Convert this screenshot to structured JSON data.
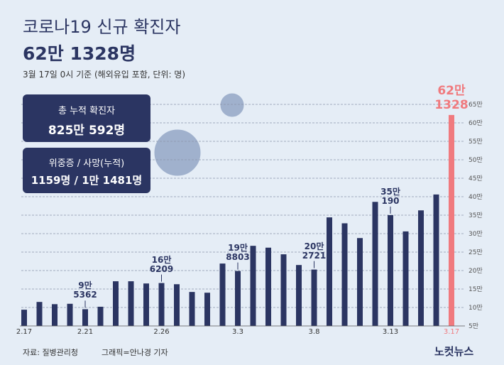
{
  "chart_data": {
    "type": "bar",
    "title": "코로나19 신규 확진자",
    "headline": "62만 1328명",
    "subtitle": "3월 17일 0시 기준 (해외유입 포함, 단위: 명)",
    "boxes": [
      {
        "label": "총 누적 확진자",
        "value": "825만 592명"
      },
      {
        "label": "위중증 / 사망(누적)",
        "value": "1159명 / 1만 1481명"
      }
    ],
    "source": "자료: 질병관리청",
    "credit": "그래픽=안나경 기자",
    "logo": "노컷뉴스",
    "categories": [
      "2.17",
      null,
      null,
      null,
      "2.21",
      null,
      null,
      null,
      null,
      "2.26",
      null,
      null,
      null,
      null,
      "3.3",
      null,
      null,
      null,
      null,
      "3.8",
      null,
      null,
      null,
      null,
      "3.13",
      null,
      null,
      null,
      "3.17"
    ],
    "values": [
      9.4,
      11.5,
      10.9,
      11.0,
      9.5362,
      10.2,
      17.1,
      17.1,
      16.5,
      16.6209,
      16.3,
      14.2,
      14.0,
      21.9,
      19.8803,
      26.7,
      26.2,
      24.4,
      21.5,
      20.2721,
      34.4,
      32.8,
      28.8,
      38.6,
      35.019,
      30.6,
      36.3,
      40.6,
      62.1328
    ],
    "value_labels": [
      null,
      null,
      null,
      null,
      "9만\n5362",
      null,
      null,
      null,
      null,
      "16만\n6209",
      null,
      null,
      null,
      null,
      "19만\n8803",
      null,
      null,
      null,
      null,
      "20만\n2721",
      null,
      null,
      null,
      null,
      "35만\n190",
      null,
      null,
      null,
      "62만\n1328"
    ],
    "colors": [
      "#2b3562",
      "#2b3562",
      "#2b3562",
      "#2b3562",
      "#2b3562",
      "#2b3562",
      "#2b3562",
      "#2b3562",
      "#2b3562",
      "#2b3562",
      "#2b3562",
      "#2b3562",
      "#2b3562",
      "#2b3562",
      "#2b3562",
      "#2b3562",
      "#2b3562",
      "#2b3562",
      "#2b3562",
      "#2b3562",
      "#2b3562",
      "#2b3562",
      "#2b3562",
      "#2b3562",
      "#2b3562",
      "#2b3562",
      "#2b3562",
      "#2b3562",
      "#f07a7e"
    ],
    "ylim": [
      5,
      65
    ],
    "yticks": [
      {
        "value": 5,
        "label": "5만"
      },
      {
        "value": 10,
        "label": "10만"
      },
      {
        "value": 15,
        "label": "15만"
      },
      {
        "value": 20,
        "label": "20만"
      },
      {
        "value": 25,
        "label": "25만"
      },
      {
        "value": 30,
        "label": "30만"
      },
      {
        "value": 35,
        "label": "35만"
      },
      {
        "value": 40,
        "label": "40만"
      },
      {
        "value": 45,
        "label": "45만"
      },
      {
        "value": 50,
        "label": "50만"
      },
      {
        "value": 55,
        "label": "55만"
      },
      {
        "value": 60,
        "label": "60만"
      },
      {
        "value": 65,
        "label": "65만"
      }
    ],
    "grid": true
  }
}
